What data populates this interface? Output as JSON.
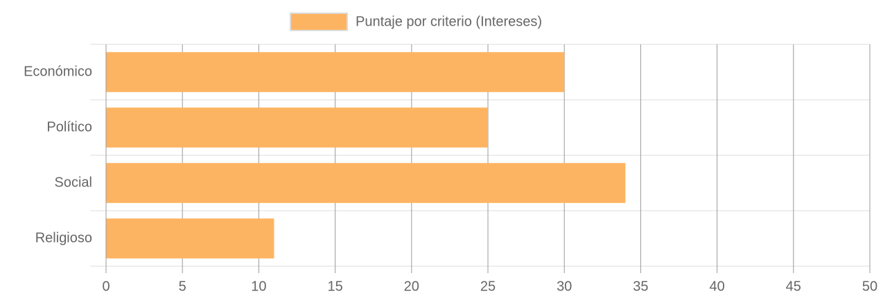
{
  "chart_data": {
    "type": "bar",
    "orientation": "horizontal",
    "categories": [
      "Económico",
      "Político",
      "Social",
      "Religioso"
    ],
    "series": [
      {
        "name": "Puntaje por criterio (Intereses)",
        "color": "#fdb462",
        "values": [
          30,
          25,
          34,
          11
        ]
      }
    ],
    "xlim": [
      0,
      50
    ],
    "xticks": [
      0,
      5,
      10,
      15,
      20,
      25,
      30,
      35,
      40,
      45,
      50
    ],
    "grid": true,
    "legend": "top"
  }
}
